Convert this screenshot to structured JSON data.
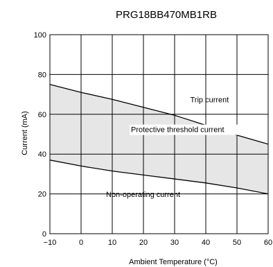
{
  "chart_data": {
    "type": "line",
    "title": "PRG18BB470MB1RB",
    "xlabel": "Ambient Temperature (°C)",
    "ylabel": "Current (mA)",
    "xlim": [
      -10,
      60
    ],
    "ylim": [
      0,
      100
    ],
    "x_ticks": [
      -10,
      0,
      10,
      20,
      30,
      40,
      50,
      60
    ],
    "x_tick_labels": [
      "−10",
      "0",
      "10",
      "20",
      "30",
      "40",
      "50",
      "60"
    ],
    "y_ticks": [
      0,
      20,
      40,
      60,
      80,
      100
    ],
    "y_tick_labels": [
      "0",
      "20",
      "40",
      "60",
      "80",
      "100"
    ],
    "grid": true,
    "fill_between": {
      "label": "Protective threshold current",
      "color": "#e6e6e6"
    },
    "series": [
      {
        "name": "Trip current",
        "x": [
          -10,
          0,
          10,
          20,
          30,
          40,
          50,
          60
        ],
        "y": [
          75,
          71,
          67.5,
          63.5,
          59.5,
          54.5,
          49.5,
          45
        ]
      },
      {
        "name": "Non-operating current",
        "x": [
          -10,
          0,
          10,
          20,
          30,
          40,
          50,
          60
        ],
        "y": [
          37,
          34,
          31.5,
          29.5,
          27.5,
          25.5,
          23,
          20
        ]
      }
    ],
    "annotations": [
      {
        "text": "Trip current",
        "x": 35,
        "y": 66
      },
      {
        "text": "Protective threshold current",
        "x": 16,
        "y": 51
      },
      {
        "text": "Non-operating current",
        "x": 8,
        "y": 18.5
      }
    ]
  }
}
